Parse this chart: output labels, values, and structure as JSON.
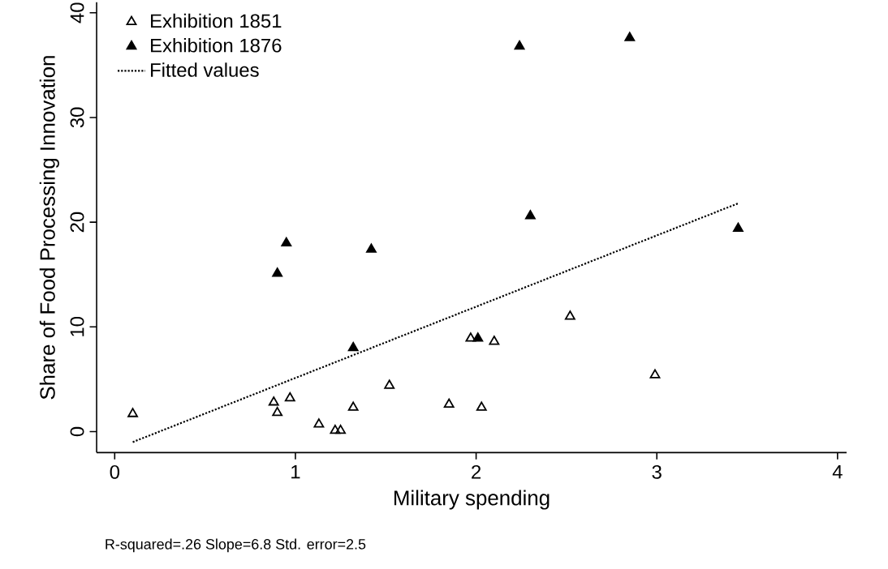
{
  "chart_data": {
    "type": "scatter",
    "xlabel": "Military spending",
    "ylabel": "Share of Food Processing Innovation",
    "xlim": [
      -0.1,
      4.05
    ],
    "ylim": [
      -2,
      41
    ],
    "xticks": [
      0,
      1,
      2,
      3,
      4
    ],
    "yticks": [
      0,
      10,
      20,
      30,
      40
    ],
    "grid": false,
    "legend": "top left",
    "series": [
      {
        "name": "Exhibition 1851",
        "marker": "triangle",
        "color": "#000000",
        "x": [
          0.1,
          0.88,
          0.9,
          0.97,
          1.13,
          1.22,
          1.25,
          1.32,
          1.52,
          1.85,
          1.97,
          2.03,
          2.1,
          2.52,
          2.99
        ],
        "values": [
          1.7,
          2.8,
          1.8,
          3.2,
          0.7,
          0.1,
          0.1,
          2.3,
          4.4,
          2.6,
          8.9,
          2.3,
          8.6,
          11,
          5.4
        ]
      },
      {
        "name": "Exhibition 1876",
        "marker": "triangle",
        "color": "#000000",
        "x": [
          0.9,
          0.95,
          1.32,
          1.42,
          2.01,
          2.24,
          2.3,
          2.85,
          3.45
        ],
        "values": [
          15.1,
          18,
          8,
          17.4,
          8.9,
          36.8,
          20.6,
          37.6,
          19.4
        ]
      },
      {
        "name": "Fitted values",
        "type": "line",
        "marker": "none",
        "line_style": "dotted",
        "color": "#000000",
        "x": [
          0.1,
          3.45
        ],
        "values": [
          -1,
          21.8
        ]
      }
    ],
    "annotations": [
      "R-squared=.26     Slope=6.8     Std. error=2.5"
    ]
  }
}
